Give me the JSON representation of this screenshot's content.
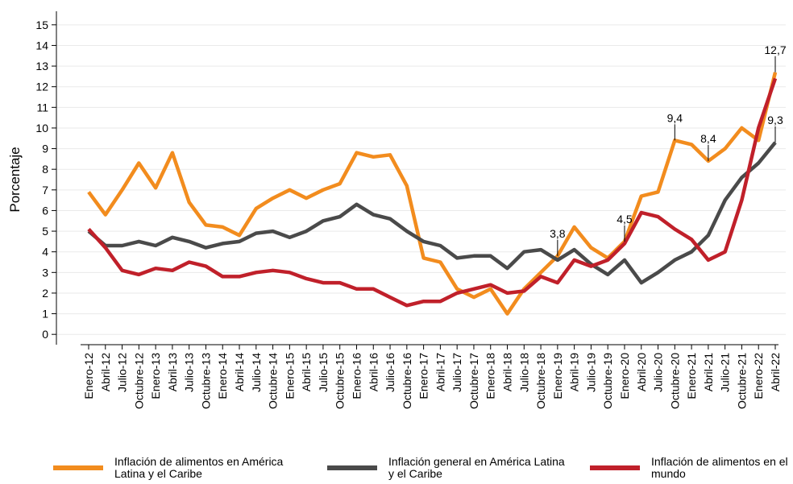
{
  "chart_data": {
    "type": "line",
    "ylabel": "Porcentaje",
    "ylim": [
      -0.5,
      15.5
    ],
    "yticks": [
      0,
      1,
      2,
      3,
      4,
      5,
      6,
      7,
      8,
      9,
      10,
      11,
      12,
      13,
      14,
      15
    ],
    "grid": true,
    "legend": "bottom",
    "categories": [
      "Enero-12",
      "Abril-12",
      "Julio-12",
      "Octubre-12",
      "Enero-13",
      "Abril-13",
      "Julio-13",
      "Octubre-13",
      "Enero-14",
      "Abril-14",
      "Julio-14",
      "Octubre-14",
      "Enero-15",
      "Abril-15",
      "Julio-15",
      "Octubre-15",
      "Enero-16",
      "Abril-16",
      "Julio-16",
      "Octubre-16",
      "Enero-17",
      "Abril-17",
      "Julio-17",
      "Octubre-17",
      "Enero-18",
      "Abril-18",
      "Julio-18",
      "Octubre-18",
      "Enero-19",
      "Abril-19",
      "Julio-19",
      "Octubre-19",
      "Enero-20",
      "Abril-20",
      "Julio-20",
      "Octubre-20",
      "Enero-21",
      "Abril-21",
      "Julio-21",
      "Octubre-21",
      "Enero-22",
      "Abril-22"
    ],
    "series": [
      {
        "name": "Inflación de alimentos en América Latina y el Caribe",
        "color": "#f28c1e",
        "values": [
          6.9,
          5.8,
          7.0,
          8.3,
          7.1,
          8.8,
          6.4,
          5.3,
          5.2,
          4.8,
          6.1,
          6.6,
          7.0,
          6.6,
          7.0,
          7.3,
          8.8,
          8.6,
          8.7,
          7.2,
          3.7,
          3.5,
          2.2,
          1.8,
          2.2,
          1.0,
          2.2,
          3.0,
          3.8,
          5.2,
          4.2,
          3.7,
          4.5,
          6.7,
          6.9,
          9.4,
          9.2,
          8.4,
          9.0,
          10.0,
          9.4,
          12.7
        ],
        "value_labels": [
          null,
          null,
          null,
          null,
          null,
          null,
          null,
          null,
          null,
          null,
          null,
          null,
          null,
          null,
          null,
          null,
          null,
          null,
          null,
          null,
          null,
          null,
          null,
          null,
          null,
          null,
          null,
          null,
          "3,8",
          null,
          null,
          null,
          "4,5",
          null,
          null,
          "9,4",
          null,
          "8,4",
          null,
          null,
          null,
          "12,7"
        ]
      },
      {
        "name": "Inflación general en América Latina y el Caribe",
        "color": "#4a4a4a",
        "values": [
          5.0,
          4.3,
          4.3,
          4.5,
          4.3,
          4.7,
          4.5,
          4.2,
          4.4,
          4.5,
          4.9,
          5.0,
          4.7,
          5.0,
          5.5,
          5.7,
          6.3,
          5.8,
          5.6,
          5.0,
          4.5,
          4.3,
          3.7,
          3.8,
          3.8,
          3.2,
          4.0,
          4.1,
          3.6,
          4.1,
          3.4,
          2.9,
          3.6,
          2.5,
          3.0,
          3.6,
          4.0,
          4.8,
          6.5,
          7.6,
          8.3,
          9.3
        ],
        "value_labels": [
          null,
          null,
          null,
          null,
          null,
          null,
          null,
          null,
          null,
          null,
          null,
          null,
          null,
          null,
          null,
          null,
          null,
          null,
          null,
          null,
          null,
          null,
          null,
          null,
          null,
          null,
          null,
          null,
          null,
          null,
          null,
          null,
          null,
          null,
          null,
          null,
          null,
          null,
          null,
          null,
          null,
          "9,3"
        ]
      },
      {
        "name": "Inflación de alimentos en el mundo",
        "color": "#c0202a",
        "values": [
          5.1,
          4.2,
          3.1,
          2.9,
          3.2,
          3.1,
          3.5,
          3.3,
          2.8,
          2.8,
          3.0,
          3.1,
          3.0,
          2.7,
          2.5,
          2.5,
          2.2,
          2.2,
          1.8,
          1.4,
          1.6,
          1.6,
          2.0,
          2.2,
          2.4,
          2.0,
          2.1,
          2.8,
          2.5,
          3.6,
          3.3,
          3.6,
          4.4,
          5.9,
          5.7,
          5.1,
          4.6,
          3.6,
          4.0,
          6.5,
          10.0,
          12.4
        ]
      }
    ]
  }
}
